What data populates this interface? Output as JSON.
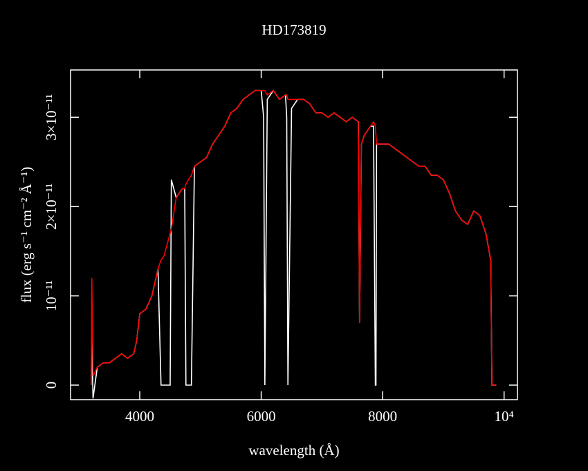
{
  "chart_data": {
    "type": "line",
    "title": "HD173819",
    "xlabel": "wavelength (Å)",
    "ylabel": "flux (erg s⁻¹ cm⁻² Å⁻¹)",
    "x": [
      3200,
      3210,
      3230,
      3300,
      3400,
      3500,
      3600,
      3700,
      3800,
      3900,
      3950,
      4000,
      4100,
      4200,
      4300,
      4350,
      4400,
      4500,
      4520,
      4600,
      4700,
      4740,
      4760,
      4800,
      4850,
      4900,
      5000,
      5100,
      5200,
      5300,
      5400,
      5500,
      5600,
      5700,
      5800,
      5900,
      6000,
      6040,
      6060,
      6100,
      6200,
      6300,
      6400,
      6420,
      6440,
      6500,
      6600,
      6700,
      6800,
      6900,
      7000,
      7100,
      7200,
      7300,
      7400,
      7500,
      7600,
      7620,
      7650,
      7700,
      7800,
      7850,
      7880,
      7890,
      7900,
      8000,
      8100,
      8200,
      8300,
      8400,
      8500,
      8600,
      8700,
      8800,
      8900,
      9000,
      9100,
      9200,
      9300,
      9400,
      9500,
      9600,
      9700,
      9780,
      9800,
      9870
    ],
    "series": [
      {
        "name": "white",
        "color": "#ffffff",
        "values": [
          0,
          5e-12,
          -1.5e-12,
          2e-12,
          2.5e-12,
          2.5e-12,
          3e-12,
          3.5e-12,
          3e-12,
          3.5e-12,
          5e-12,
          8e-12,
          8.5e-12,
          1e-11,
          1.3e-11,
          0,
          0,
          0,
          2.3e-11,
          2.1e-11,
          2.2e-11,
          2.2e-11,
          0,
          0,
          0,
          2.45e-11,
          2.5e-11,
          2.55e-11,
          2.7e-11,
          2.8e-11,
          2.9e-11,
          3.05e-11,
          3.1e-11,
          3.2e-11,
          3.25e-11,
          3.3e-11,
          3.3e-11,
          3e-11,
          0,
          3.2e-11,
          3.3e-11,
          3.2e-11,
          3.25e-11,
          3e-11,
          0,
          3.1e-11,
          3.2e-11,
          3.2e-11,
          3.15e-11,
          3.05e-11,
          3.05e-11,
          3e-11,
          3.05e-11,
          3e-11,
          2.95e-11,
          3e-11,
          2.95e-11,
          7e-12,
          2.7e-11,
          2.8e-11,
          2.9e-11,
          2.9e-11,
          0,
          0,
          2.7e-11,
          2.7e-11,
          2.7e-11,
          2.65e-11,
          2.6e-11,
          2.55e-11,
          2.5e-11,
          2.45e-11,
          2.45e-11,
          2.35e-11,
          2.35e-11,
          2.3e-11,
          2.15e-11,
          1.95e-11,
          1.85e-11,
          1.8e-11,
          1.95e-11,
          1.9e-11,
          1.7e-11,
          1.4e-11,
          0,
          0
        ]
      },
      {
        "name": "red",
        "color": "#ff0000",
        "values": [
          0,
          1.2e-11,
          1e-12,
          2e-12,
          2.5e-12,
          2.5e-12,
          3e-12,
          3.5e-12,
          3e-12,
          3.5e-12,
          5e-12,
          8e-12,
          8.5e-12,
          1e-11,
          1.3e-11,
          1.4e-11,
          1.45e-11,
          1.7e-11,
          1.75e-11,
          2.1e-11,
          2.2e-11,
          2.2e-11,
          2.25e-11,
          2.3e-11,
          2.35e-11,
          2.45e-11,
          2.5e-11,
          2.55e-11,
          2.7e-11,
          2.8e-11,
          2.9e-11,
          3.05e-11,
          3.1e-11,
          3.2e-11,
          3.25e-11,
          3.3e-11,
          3.3e-11,
          3.3e-11,
          3.3e-11,
          3.25e-11,
          3.3e-11,
          3.2e-11,
          3.25e-11,
          3.25e-11,
          3.2e-11,
          3.2e-11,
          3.2e-11,
          3.2e-11,
          3.15e-11,
          3.05e-11,
          3.05e-11,
          3e-11,
          3.05e-11,
          3e-11,
          2.95e-11,
          3e-11,
          2.95e-11,
          7e-12,
          2.7e-11,
          2.8e-11,
          2.9e-11,
          2.95e-11,
          2.9e-11,
          2.8e-11,
          2.7e-11,
          2.7e-11,
          2.7e-11,
          2.65e-11,
          2.6e-11,
          2.55e-11,
          2.5e-11,
          2.45e-11,
          2.45e-11,
          2.35e-11,
          2.35e-11,
          2.3e-11,
          2.15e-11,
          1.95e-11,
          1.85e-11,
          1.8e-11,
          1.95e-11,
          1.9e-11,
          1.7e-11,
          1.4e-11,
          0,
          0
        ]
      }
    ],
    "xlim": [
      2860,
      10220
    ],
    "ylim": [
      -1.63e-12,
      3.53e-11
    ],
    "xticks": [
      4000,
      6000,
      8000,
      {
        "value": 10000,
        "label": "10⁴"
      }
    ],
    "yticks": [
      0,
      {
        "value": 1e-11,
        "label": "10⁻¹¹"
      },
      {
        "value": 2e-11,
        "label": "2×10⁻¹¹"
      },
      {
        "value": 3e-11,
        "label": "3×10⁻¹¹"
      }
    ]
  }
}
